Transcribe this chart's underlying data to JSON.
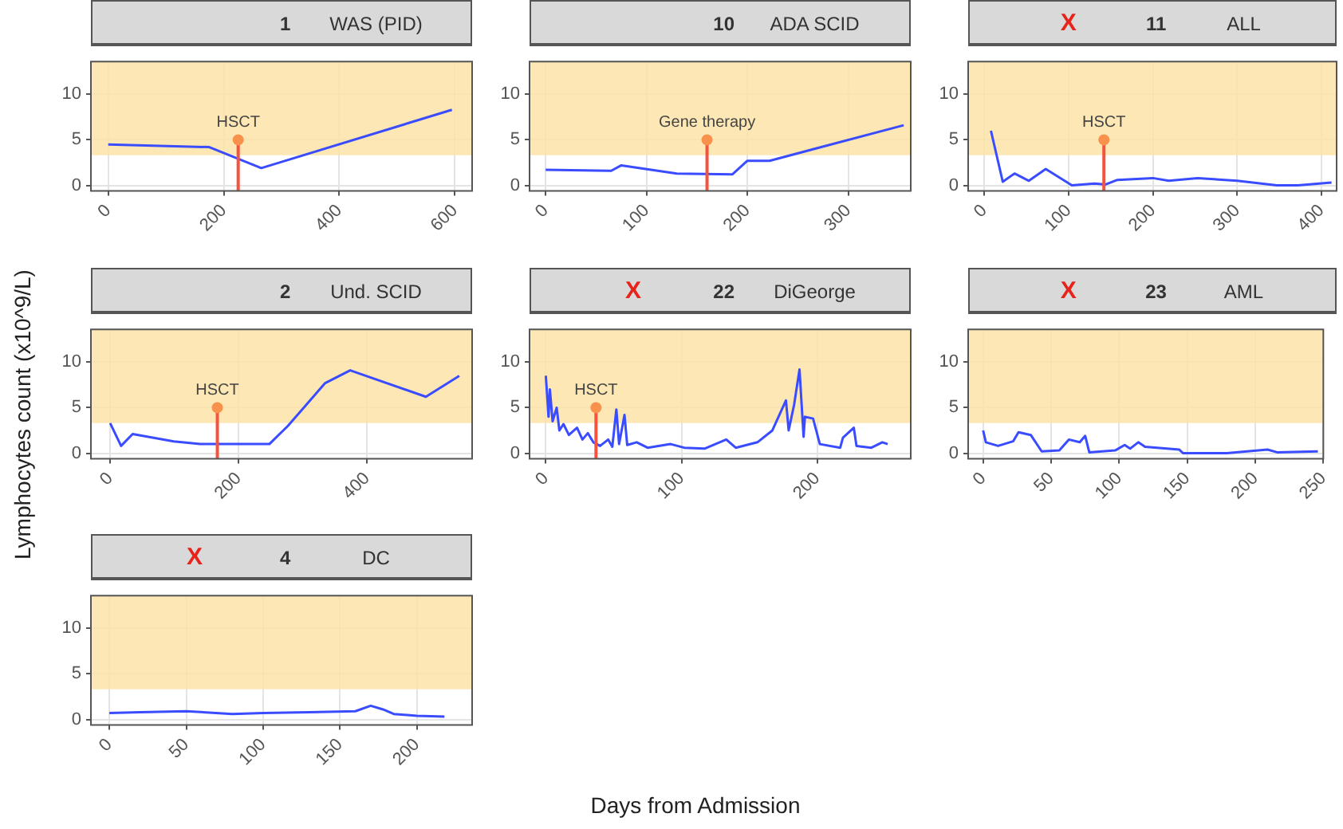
{
  "chart_data": [
    {
      "type": "line",
      "title": "1",
      "subtitle": "WAS (PID)",
      "ylabel": "Lymphocytes count (x10^9/L)",
      "annotations": [
        {
          "text": "HSCT",
          "x": 225,
          "y": 5
        }
      ],
      "series": [
        {
          "color": "#3a4cff",
          "x": [
            0,
            175,
            265,
            595
          ],
          "values": [
            4.5,
            4.2,
            1.9,
            8.3
          ]
        }
      ],
      "xlim": [
        -30,
        630
      ],
      "xticks": [
        0,
        200,
        400,
        600
      ],
      "ylim": [
        -0.6,
        13.6
      ],
      "yticks": [
        0,
        5,
        10
      ],
      "bands": [
        {
          "axis": "y",
          "from": 3.3,
          "to": 13.6,
          "color": "#fde3a7"
        }
      ],
      "grid": true
    },
    {
      "type": "line",
      "title": "10",
      "subtitle": "ADA SCID",
      "annotations": [
        {
          "text": "Gene therapy",
          "x": 160,
          "y": 5
        }
      ],
      "series": [
        {
          "color": "#3a4cff",
          "x": [
            0,
            65,
            75,
            130,
            185,
            200,
            222,
            355
          ],
          "values": [
            1.7,
            1.6,
            2.2,
            1.3,
            1.2,
            2.7,
            2.7,
            6.6
          ]
        }
      ],
      "xlim": [
        -16,
        362
      ],
      "xticks": [
        0,
        100,
        200,
        300
      ],
      "ylim": [
        -0.6,
        13.6
      ],
      "yticks": [
        0,
        5,
        10
      ],
      "bands": [
        {
          "axis": "y",
          "from": 3.3,
          "to": 13.6,
          "color": "#fde3a7"
        }
      ],
      "grid": true
    },
    {
      "type": "line",
      "title": "11",
      "subtitle": "ALL",
      "annotations": [
        "X",
        {
          "text": "HSCT",
          "x": 142,
          "y": 5
        }
      ],
      "series": [
        {
          "color": "#3a4cff",
          "x": [
            8,
            22,
            36,
            53,
            73,
            104,
            131,
            144,
            158,
            200,
            219,
            253,
            300,
            347,
            372,
            412
          ],
          "values": [
            6,
            0.4,
            1.3,
            0.5,
            1.8,
            0,
            0.2,
            0.1,
            0.6,
            0.8,
            0.5,
            0.8,
            0.5,
            0,
            0,
            0.3
          ]
        }
      ],
      "xlim": [
        -19,
        418
      ],
      "xticks": [
        0,
        100,
        200,
        300,
        400
      ],
      "ylim": [
        -0.6,
        13.6
      ],
      "yticks": [
        0,
        5,
        10
      ],
      "bands": [
        {
          "axis": "y",
          "from": 3.3,
          "to": 13.6,
          "color": "#fde3a7"
        }
      ],
      "grid": true
    },
    {
      "type": "line",
      "title": "2",
      "subtitle": "Und. SCID",
      "annotations": [
        {
          "text": "HSCT",
          "x": 167,
          "y": 5
        }
      ],
      "series": [
        {
          "color": "#3a4cff",
          "x": [
            0,
            17,
            35,
            99,
            140,
            248,
            277,
            335,
            374,
            492,
            544
          ],
          "values": [
            3.3,
            0.8,
            2.1,
            1.3,
            1,
            1,
            3,
            7.7,
            9.1,
            6.2,
            8.5
          ]
        }
      ],
      "xlim": [
        -30,
        564
      ],
      "xticks": [
        0,
        200,
        400
      ],
      "ylim": [
        -0.6,
        13.6
      ],
      "yticks": [
        0,
        5,
        10
      ],
      "bands": [
        {
          "axis": "y",
          "from": 3.3,
          "to": 13.6,
          "color": "#fde3a7"
        }
      ],
      "grid": true
    },
    {
      "type": "line",
      "title": "22",
      "subtitle": "DiGeorge",
      "annotations": [
        "X",
        {
          "text": "HSCT",
          "x": 37,
          "y": 5
        }
      ],
      "series": [
        {
          "color": "#3a4cff",
          "x": [
            0,
            2,
            3,
            5,
            8,
            10,
            13,
            17,
            23,
            27,
            31,
            35,
            40,
            46,
            49,
            52,
            54,
            58,
            60,
            67,
            75,
            92,
            102,
            117,
            133,
            140,
            156,
            167,
            177,
            179,
            183,
            187,
            190,
            191,
            197,
            202,
            217,
            219,
            227,
            229,
            240,
            248,
            252
          ],
          "values": [
            8.5,
            4,
            7,
            3.5,
            5,
            2.5,
            3.2,
            2,
            2.8,
            1.5,
            2.2,
            1.2,
            0.8,
            1.5,
            0.7,
            4.8,
            1,
            4.2,
            0.9,
            1.2,
            0.6,
            1,
            0.6,
            0.5,
            1.5,
            0.6,
            1.2,
            2.5,
            5.8,
            2.5,
            5.3,
            9.2,
            1.8,
            4,
            3.8,
            1,
            0.6,
            1.7,
            2.8,
            0.8,
            0.6,
            1.2,
            1
          ]
        }
      ],
      "xlim": [
        -12,
        269
      ],
      "xticks": [
        0,
        100,
        200
      ],
      "ylim": [
        -0.6,
        13.6
      ],
      "yticks": [
        0,
        5,
        10
      ],
      "bands": [
        {
          "axis": "y",
          "from": 3.3,
          "to": 13.6,
          "color": "#fde3a7"
        }
      ],
      "grid": true
    },
    {
      "type": "line",
      "title": "23",
      "subtitle": "AML",
      "annotations": [
        "X"
      ],
      "series": [
        {
          "color": "#3a4cff",
          "x": [
            0,
            2,
            11,
            22,
            26,
            35,
            43,
            56,
            63,
            71,
            75,
            78,
            97,
            104,
            108,
            114,
            119,
            144,
            147,
            179,
            209,
            216,
            246
          ],
          "values": [
            2.5,
            1.2,
            0.8,
            1.3,
            2.3,
            2,
            0.2,
            0.3,
            1.5,
            1.2,
            1.9,
            0.1,
            0.3,
            0.9,
            0.5,
            1.2,
            0.7,
            0.4,
            0,
            0,
            0.4,
            0.1,
            0.2
          ]
        }
      ],
      "xlim": [
        -11,
        250
      ],
      "xticks": [
        0,
        50,
        100,
        150,
        200,
        250
      ],
      "ylim": [
        -0.6,
        13.6
      ],
      "yticks": [
        0,
        5,
        10
      ],
      "bands": [
        {
          "axis": "y",
          "from": 3.3,
          "to": 13.6,
          "color": "#fde3a7"
        }
      ],
      "grid": true
    },
    {
      "type": "line",
      "title": "4",
      "subtitle": "DC",
      "xlabel": "Days from Admission",
      "annotations": [
        "X"
      ],
      "series": [
        {
          "color": "#3a4cff",
          "x": [
            0,
            20,
            50,
            80,
            100,
            130,
            160,
            170,
            178,
            185,
            200,
            218
          ],
          "values": [
            0.7,
            0.8,
            0.9,
            0.6,
            0.7,
            0.8,
            0.9,
            1.5,
            1.1,
            0.6,
            0.4,
            0.3
          ]
        }
      ],
      "xlim": [
        -12,
        236
      ],
      "xticks": [
        0,
        50,
        100,
        150,
        200
      ],
      "ylim": [
        -0.6,
        13.6
      ],
      "yticks": [
        0,
        5,
        10
      ],
      "bands": [
        {
          "axis": "y",
          "from": 3.3,
          "to": 13.6,
          "color": "#fde3a7"
        }
      ],
      "grid": true
    }
  ]
}
